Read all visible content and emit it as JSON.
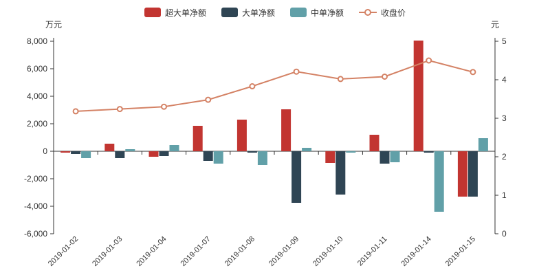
{
  "legend": {
    "items": [
      {
        "label": "超大单净额",
        "color": "#c23531",
        "kind": "bar"
      },
      {
        "label": "大单净额",
        "color": "#2f4554",
        "kind": "bar"
      },
      {
        "label": "中单净额",
        "color": "#61a0a8",
        "kind": "bar"
      },
      {
        "label": "收盘价",
        "color": "#d48265",
        "kind": "line"
      }
    ]
  },
  "chart_data": {
    "type": "bar",
    "categories": [
      "2019-01-02",
      "2019-01-03",
      "2019-01-04",
      "2019-01-07",
      "2019-01-08",
      "2019-01-09",
      "2019-01-10",
      "2019-01-11",
      "2019-01-14",
      "2019-01-15"
    ],
    "series": [
      {
        "name": "超大单净额",
        "type": "bar",
        "axis": "left",
        "color": "#c23531",
        "values": [
          -100,
          550,
          -400,
          1850,
          2300,
          3050,
          -850,
          1200,
          8050,
          -3300
        ]
      },
      {
        "name": "大单净额",
        "type": "bar",
        "axis": "left",
        "color": "#2f4554",
        "values": [
          -200,
          -500,
          -350,
          -700,
          -100,
          -3750,
          -3150,
          -900,
          -100,
          -3300
        ]
      },
      {
        "name": "中单净额",
        "type": "bar",
        "axis": "left",
        "color": "#61a0a8",
        "values": [
          -500,
          150,
          450,
          -900,
          -1000,
          250,
          -100,
          -800,
          -4400,
          950
        ]
      },
      {
        "name": "收盘价",
        "type": "line",
        "axis": "right",
        "color": "#d48265",
        "values": [
          3.18,
          3.24,
          3.3,
          3.48,
          3.83,
          4.21,
          4.02,
          4.08,
          4.5,
          4.2
        ]
      }
    ],
    "left_axis": {
      "title": "万元",
      "min": -6000,
      "max": 8000,
      "step": 2000,
      "tick_labels": [
        "8,000",
        "6,000",
        "4,000",
        "2,000",
        "0",
        "-2,000",
        "-4,000",
        "-6,000"
      ]
    },
    "right_axis": {
      "title": "元",
      "min": 0,
      "max": 5,
      "step": 1,
      "tick_labels": [
        "5",
        "4",
        "3",
        "2",
        "1",
        "0"
      ]
    },
    "grid": false,
    "legend_position": "top",
    "axis_color": "#333",
    "label_color": "#333"
  }
}
